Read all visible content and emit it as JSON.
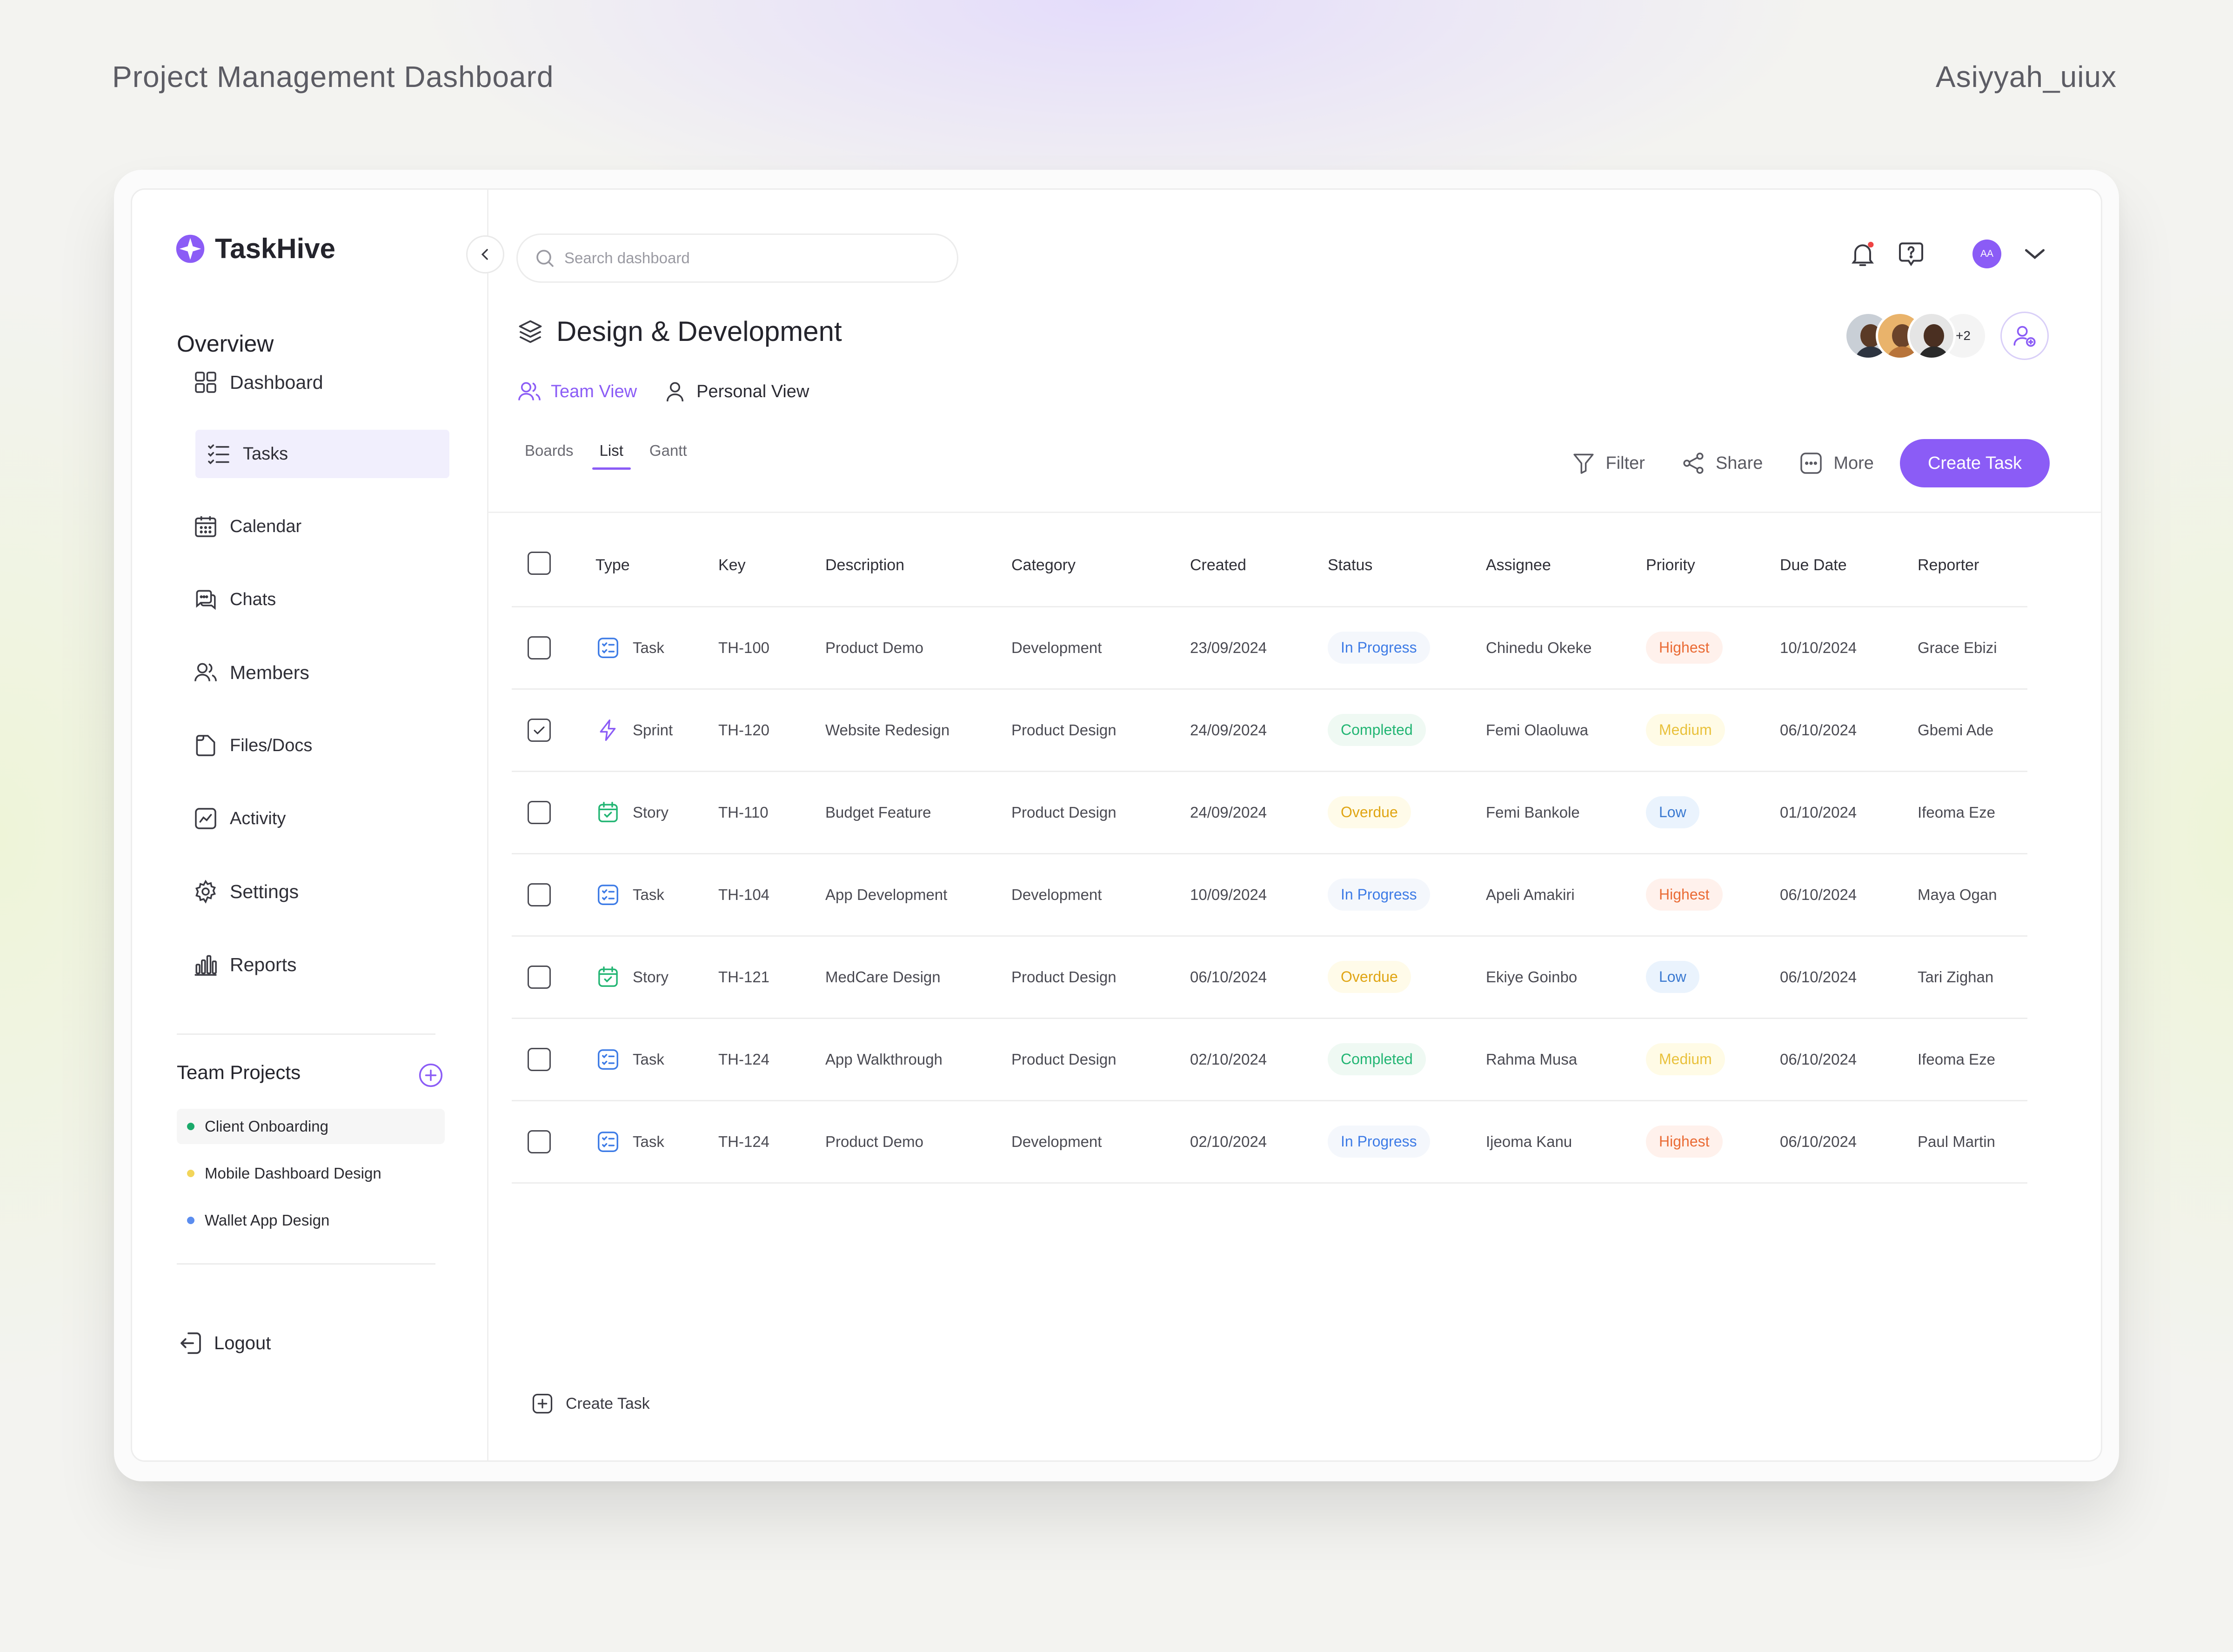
{
  "page": {
    "title": "Project Management Dashboard",
    "author": "Asiyyah_uiux"
  },
  "app": {
    "name": "TaskHive"
  },
  "sidebar": {
    "overview_label": "Overview",
    "items": [
      {
        "label": "Dashboard",
        "icon": "grid-icon"
      },
      {
        "label": "Tasks",
        "icon": "checklist-icon",
        "active": true
      },
      {
        "label": "Calendar",
        "icon": "calendar-icon"
      },
      {
        "label": "Chats",
        "icon": "chat-icon"
      },
      {
        "label": "Members",
        "icon": "users-icon"
      },
      {
        "label": "Files/Docs",
        "icon": "file-icon"
      },
      {
        "label": "Activity",
        "icon": "activity-icon"
      },
      {
        "label": "Settings",
        "icon": "gear-icon"
      },
      {
        "label": "Reports",
        "icon": "bar-chart-icon"
      }
    ],
    "team_projects_label": "Team Projects",
    "projects": [
      {
        "name": "Client Onboarding",
        "color": "#1aa96a",
        "active": true
      },
      {
        "name": "Mobile Dashboard Design",
        "color": "#f2d55a"
      },
      {
        "name": "Wallet App Design",
        "color": "#5b8def"
      }
    ],
    "logout_label": "Logout"
  },
  "header": {
    "search_placeholder": "Search dashboard",
    "avatar_initials": "AA",
    "notification_dot_color": "#ef4444"
  },
  "project": {
    "title": "Design & Development",
    "extra_members": "+2",
    "views": [
      {
        "label": "Team View",
        "active": true
      },
      {
        "label": "Personal View"
      }
    ],
    "tabs": [
      {
        "label": "Boards"
      },
      {
        "label": "List",
        "active": true
      },
      {
        "label": "Gantt"
      }
    ],
    "actions": {
      "filter": "Filter",
      "share": "Share",
      "more": "More",
      "create": "Create Task"
    }
  },
  "table": {
    "columns": [
      "Type",
      "Key",
      "Description",
      "Category",
      "Created",
      "Status",
      "Assignee",
      "Priority",
      "Due Date",
      "Reporter"
    ],
    "rows": [
      {
        "checked": false,
        "type": "Task",
        "key": "TH-100",
        "description": "Product Demo",
        "category": "Development",
        "created": "23/09/2024",
        "status": "In Progress",
        "assignee": "Chinedu Okeke",
        "priority": "Highest",
        "due": "10/10/2024",
        "reporter": "Grace Ebizi"
      },
      {
        "checked": true,
        "type": "Sprint",
        "key": "TH-120",
        "description": "Website Redesign",
        "category": "Product Design",
        "created": "24/09/2024",
        "status": "Completed",
        "assignee": "Femi Olaoluwa",
        "priority": "Medium",
        "due": "06/10/2024",
        "reporter": "Gbemi Ade"
      },
      {
        "checked": false,
        "type": "Story",
        "key": "TH-110",
        "description": "Budget Feature",
        "category": "Product Design",
        "created": "24/09/2024",
        "status": "Overdue",
        "assignee": "Femi Bankole",
        "priority": "Low",
        "due": "01/10/2024",
        "reporter": "Ifeoma Eze"
      },
      {
        "checked": false,
        "type": "Task",
        "key": "TH-104",
        "description": "App Development",
        "category": "Development",
        "created": "10/09/2024",
        "status": "In Progress",
        "assignee": "Apeli Amakiri",
        "priority": "Highest",
        "due": "06/10/2024",
        "reporter": "Maya Ogan"
      },
      {
        "checked": false,
        "type": "Story",
        "key": "TH-121",
        "description": "MedCare Design",
        "category": "Product Design",
        "created": "06/10/2024",
        "status": "Overdue",
        "assignee": "Ekiye Goinbo",
        "priority": "Low",
        "due": "06/10/2024",
        "reporter": "Tari Zighan"
      },
      {
        "checked": false,
        "type": "Task",
        "key": "TH-124",
        "description": "App Walkthrough",
        "category": "Product Design",
        "created": "02/10/2024",
        "status": "Completed",
        "assignee": "Rahma Musa",
        "priority": "Medium",
        "due": "06/10/2024",
        "reporter": "Ifeoma Eze"
      },
      {
        "checked": false,
        "type": "Task",
        "key": "TH-124",
        "description": "Product Demo",
        "category": "Development",
        "created": "02/10/2024",
        "status": "In Progress",
        "assignee": "Ijeoma Kanu",
        "priority": "Highest",
        "due": "06/10/2024",
        "reporter": "Paul Martin"
      }
    ],
    "create_label": "Create Task"
  },
  "colors": {
    "accent": "#8b5cf6"
  }
}
